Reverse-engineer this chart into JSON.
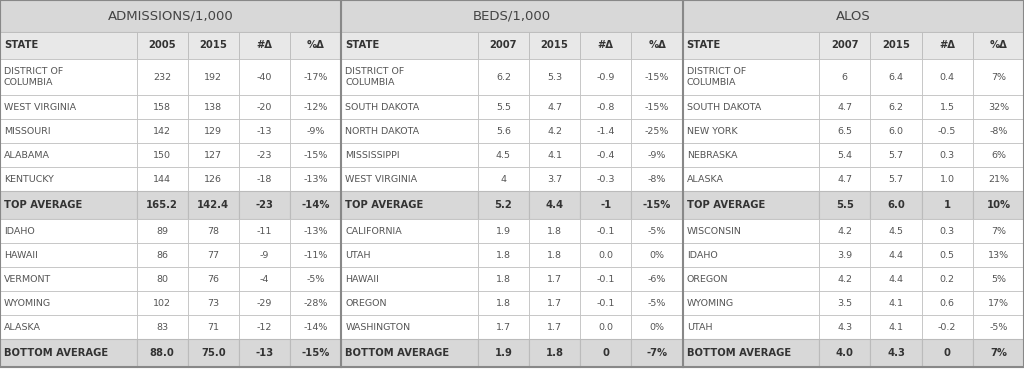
{
  "sections": [
    {
      "title": "ADMISSIONS/1,000",
      "col2_header": "2005",
      "col3_header": "2015",
      "col4_header": "#Δ",
      "col5_header": "%Δ",
      "rows": [
        [
          "DISTRICT OF\nCOLUMBIA",
          "232",
          "192",
          "-40",
          "-17%"
        ],
        [
          "WEST VIRGINIA",
          "158",
          "138",
          "-20",
          "-12%"
        ],
        [
          "MISSOURI",
          "142",
          "129",
          "-13",
          "-9%"
        ],
        [
          "ALABAMA",
          "150",
          "127",
          "-23",
          "-15%"
        ],
        [
          "KENTUCKY",
          "144",
          "126",
          "-18",
          "-13%"
        ]
      ],
      "avg_row": [
        "TOP AVERAGE",
        "165.2",
        "142.4",
        "-23",
        "-14%"
      ],
      "bottom_rows": [
        [
          "IDAHO",
          "89",
          "78",
          "-11",
          "-13%"
        ],
        [
          "HAWAII",
          "86",
          "77",
          "-9",
          "-11%"
        ],
        [
          "VERMONT",
          "80",
          "76",
          "-4",
          "-5%"
        ],
        [
          "WYOMING",
          "102",
          "73",
          "-29",
          "-28%"
        ],
        [
          "ALASKA",
          "83",
          "71",
          "-12",
          "-14%"
        ]
      ],
      "bottom_avg_row": [
        "BOTTOM AVERAGE",
        "88.0",
        "75.0",
        "-13",
        "-15%"
      ]
    },
    {
      "title": "BEDS/1,000",
      "col2_header": "2007",
      "col3_header": "2015",
      "col4_header": "#Δ",
      "col5_header": "%Δ",
      "rows": [
        [
          "DISTRICT OF\nCOLUMBIA",
          "6.2",
          "5.3",
          "-0.9",
          "-15%"
        ],
        [
          "SOUTH DAKOTA",
          "5.5",
          "4.7",
          "-0.8",
          "-15%"
        ],
        [
          "NORTH DAKOTA",
          "5.6",
          "4.2",
          "-1.4",
          "-25%"
        ],
        [
          "MISSISSIPPI",
          "4.5",
          "4.1",
          "-0.4",
          "-9%"
        ],
        [
          "WEST VIRGINIA",
          "4",
          "3.7",
          "-0.3",
          "-8%"
        ]
      ],
      "avg_row": [
        "TOP AVERAGE",
        "5.2",
        "4.4",
        "-1",
        "-15%"
      ],
      "bottom_rows": [
        [
          "CALIFORNIA",
          "1.9",
          "1.8",
          "-0.1",
          "-5%"
        ],
        [
          "UTAH",
          "1.8",
          "1.8",
          "0.0",
          "0%"
        ],
        [
          "HAWAII",
          "1.8",
          "1.7",
          "-0.1",
          "-6%"
        ],
        [
          "OREGON",
          "1.8",
          "1.7",
          "-0.1",
          "-5%"
        ],
        [
          "WASHINGTON",
          "1.7",
          "1.7",
          "0.0",
          "0%"
        ]
      ],
      "bottom_avg_row": [
        "BOTTOM AVERAGE",
        "1.9",
        "1.8",
        "0",
        "-7%"
      ]
    },
    {
      "title": "ALOS",
      "col2_header": "2007",
      "col3_header": "2015",
      "col4_header": "#Δ",
      "col5_header": "%Δ",
      "rows": [
        [
          "DISTRICT OF\nCOLUMBIA",
          "6",
          "6.4",
          "0.4",
          "7%"
        ],
        [
          "SOUTH DAKOTA",
          "4.7",
          "6.2",
          "1.5",
          "32%"
        ],
        [
          "NEW YORK",
          "6.5",
          "6.0",
          "-0.5",
          "-8%"
        ],
        [
          "NEBRASKA",
          "5.4",
          "5.7",
          "0.3",
          "6%"
        ],
        [
          "ALASKA",
          "4.7",
          "5.7",
          "1.0",
          "21%"
        ]
      ],
      "avg_row": [
        "TOP AVERAGE",
        "5.5",
        "6.0",
        "1",
        "10%"
      ],
      "bottom_rows": [
        [
          "WISCONSIN",
          "4.2",
          "4.5",
          "0.3",
          "7%"
        ],
        [
          "IDAHO",
          "3.9",
          "4.4",
          "0.5",
          "13%"
        ],
        [
          "OREGON",
          "4.2",
          "4.4",
          "0.2",
          "5%"
        ],
        [
          "WYOMING",
          "3.5",
          "4.1",
          "0.6",
          "17%"
        ],
        [
          "UTAH",
          "4.3",
          "4.1",
          "-0.2",
          "-5%"
        ]
      ],
      "bottom_avg_row": [
        "BOTTOM AVERAGE",
        "4.0",
        "4.3",
        "0",
        "7%"
      ]
    }
  ],
  "title_bg_color": "#d8d8d8",
  "header_bg_color": "#e8e8e8",
  "avg_bg_color": "#d8d8d8",
  "row_bg_color": "#ffffff",
  "border_color": "#bbbbbb",
  "text_color": "#555555",
  "bold_text_color": "#333333",
  "title_text_color": "#444444",
  "outer_border_color": "#888888",
  "title_fontsize": 9.5,
  "header_fontsize": 7.2,
  "data_fontsize": 6.8,
  "avg_fontsize": 7.2
}
